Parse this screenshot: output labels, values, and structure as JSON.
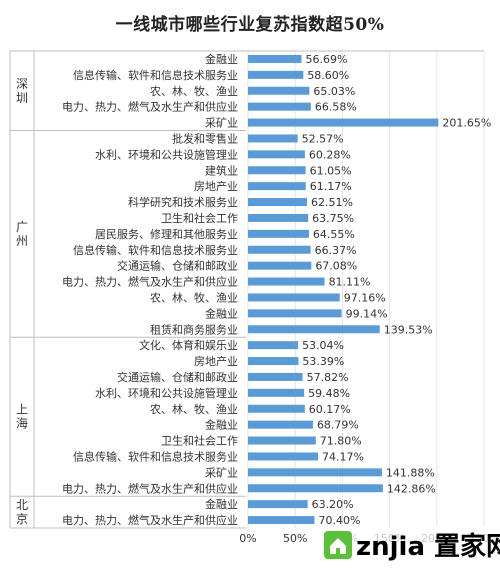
{
  "chart_data": {
    "type": "bar",
    "orientation": "horizontal",
    "title": "一线城市哪些行业复苏指数超50%",
    "xlim": [
      0,
      250
    ],
    "x_ticks": [
      "0%",
      "50%",
      "100%",
      "150%",
      "200%",
      "250%"
    ],
    "grid": "vertical",
    "groups": [
      {
        "name": "深圳",
        "categories": [
          "金融业",
          "信息传输、软件和信息技术服务业",
          "农、林、牧、渔业",
          "电力、热力、燃气及水生产和供应业",
          "采矿业"
        ],
        "values": [
          56.69,
          58.6,
          65.03,
          66.58,
          201.65
        ],
        "labels": [
          "56.69%",
          "58.60%",
          "65.03%",
          "66.58%",
          "201.65%"
        ]
      },
      {
        "name": "广州",
        "categories": [
          "批发和零售业",
          "水利、环境和公共设施管理业",
          "建筑业",
          "房地产业",
          "科学研究和技术服务业",
          "卫生和社会工作",
          "居民服务、修理和其他服务业",
          "信息传输、软件和信息技术服务业",
          "交通运输、仓储和邮政业",
          "电力、热力、燃气及水生产和供应业",
          "农、林、牧、渔业",
          "金融业",
          "租赁和商务服务业"
        ],
        "values": [
          52.57,
          60.28,
          61.05,
          61.17,
          62.51,
          63.75,
          64.55,
          66.37,
          67.08,
          81.11,
          97.16,
          99.14,
          139.53
        ],
        "labels": [
          "52.57%",
          "60.28%",
          "61.05%",
          "61.17%",
          "62.51%",
          "63.75%",
          "64.55%",
          "66.37%",
          "67.08%",
          "81.11%",
          "97.16%",
          "99.14%",
          "139.53%"
        ]
      },
      {
        "name": "上海",
        "categories": [
          "文化、体育和娱乐业",
          "房地产业",
          "交通运输、仓储和邮政业",
          "水利、环境和公共设施管理业",
          "农、林、牧、渔业",
          "金融业",
          "卫生和社会工作",
          "信息传输、软件和信息技术服务业",
          "采矿业",
          "电力、热力、燃气及水生产和供应业"
        ],
        "values": [
          53.04,
          53.39,
          57.82,
          59.48,
          60.17,
          68.79,
          71.8,
          74.17,
          141.88,
          142.86
        ],
        "labels": [
          "53.04%",
          "53.39%",
          "57.82%",
          "59.48%",
          "60.17%",
          "68.79%",
          "71.80%",
          "74.17%",
          "141.88%",
          "142.86%"
        ]
      },
      {
        "name": "北京",
        "categories": [
          "金融业",
          "电力、热力、燃气及水生产和供应业"
        ],
        "values": [
          63.2,
          70.4
        ],
        "labels": [
          "63.20%",
          "70.40%"
        ]
      }
    ],
    "bar_color": "#5b9bd5"
  },
  "watermark": {
    "brand_latin": "znjia",
    "brand_cn": "置家网",
    "color_green": "#5bbf3a",
    "color_red": "#e8492f"
  }
}
